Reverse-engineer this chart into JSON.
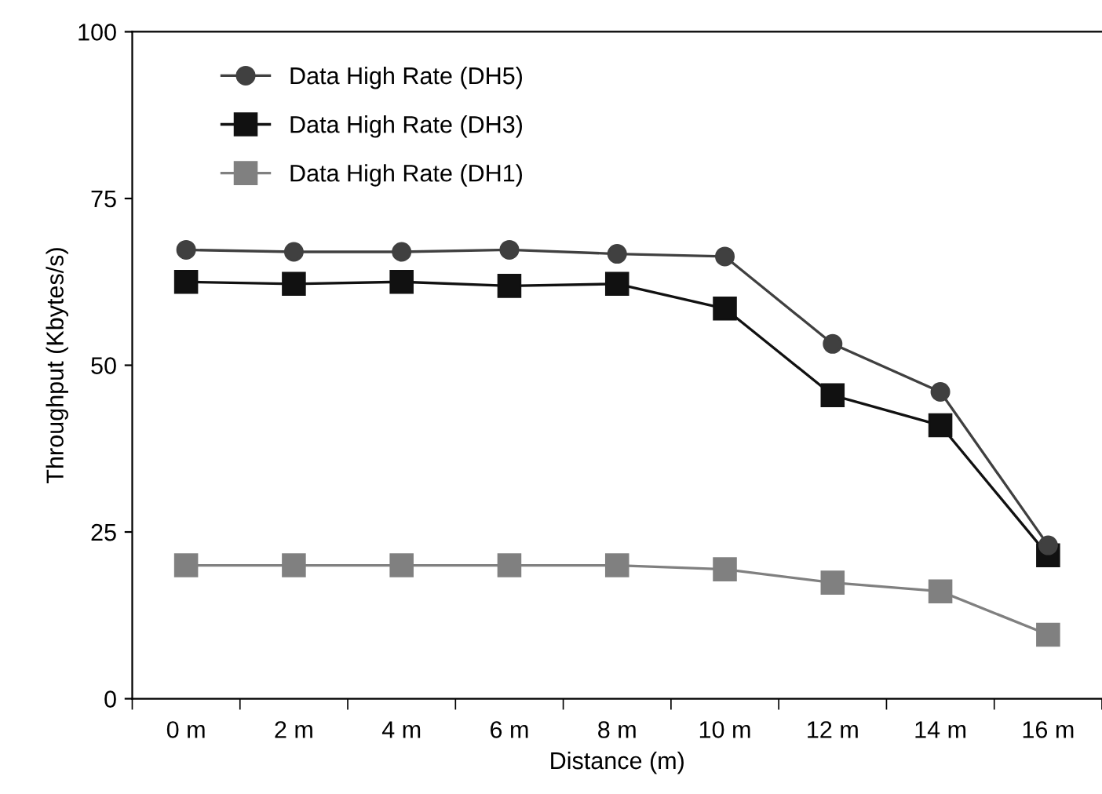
{
  "chart_data": {
    "type": "line",
    "xlabel": "Distance (m)",
    "ylabel": "Throughput (Kbytes/s)",
    "categories": [
      "0 m",
      "2 m",
      "4 m",
      "6 m",
      "8 m",
      "10 m",
      "12 m",
      "14 m",
      "16 m"
    ],
    "series": [
      {
        "name": "Data High Rate (DH5)",
        "color": "#404040",
        "marker": "circle",
        "values": [
          67.3,
          67,
          67,
          67.3,
          66.7,
          66.3,
          53.2,
          46,
          23
        ]
      },
      {
        "name": "Data High Rate (DH3)",
        "color": "#111111",
        "marker": "square",
        "values": [
          62.5,
          62.2,
          62.5,
          61.9,
          62.2,
          58.5,
          45.5,
          41,
          21.5
        ]
      },
      {
        "name": "Data High Rate (DH1)",
        "color": "#808080",
        "marker": "square",
        "values": [
          20,
          20,
          20,
          20,
          20,
          19.4,
          17.4,
          16.1,
          9.6
        ]
      }
    ],
    "ylim": [
      0,
      100
    ],
    "yticks": [
      0,
      25,
      50,
      75,
      100
    ],
    "grid": false,
    "legend": "top left",
    "line_style": "solid"
  }
}
